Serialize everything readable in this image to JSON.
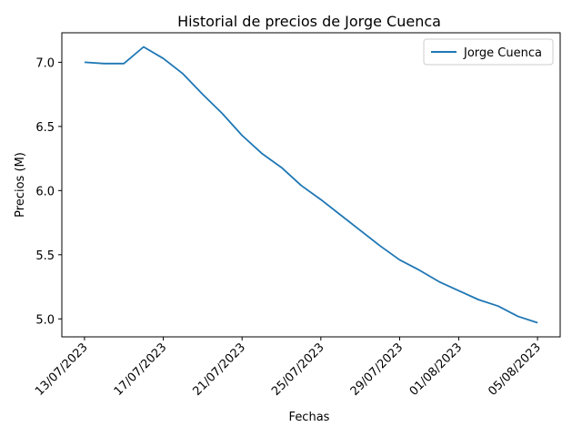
{
  "chart_data": {
    "type": "line",
    "title": "Historial de precios de Jorge Cuenca",
    "xlabel": "Fechas",
    "ylabel": "Precios (M)",
    "x": [
      "13/07/2023",
      "15/07/2023",
      "15/07/2023",
      "16/07/2023",
      "17/07/2023",
      "18/07/2023",
      "19/07/2023",
      "20/07/2023",
      "21/07/2023",
      "22/07/2023",
      "23/07/2023",
      "24/07/2023",
      "25/07/2023",
      "26/07/2023",
      "27/07/2023",
      "28/07/2023",
      "29/07/2023",
      "30/07/2023",
      "31/07/2023",
      "01/08/2023",
      "02/08/2023",
      "03/08/2023",
      "04/08/2023",
      "05/08/2023"
    ],
    "series": [
      {
        "name": "Jorge Cuenca",
        "color": "#1f77b4",
        "values": [
          7.0,
          6.99,
          6.99,
          7.12,
          7.03,
          6.91,
          6.75,
          6.6,
          6.43,
          6.29,
          6.18,
          6.04,
          5.93,
          5.81,
          5.69,
          5.57,
          5.46,
          5.38,
          5.29,
          5.22,
          5.15,
          5.1,
          5.02,
          4.97
        ]
      }
    ],
    "x_positions_days": [
      0,
      1,
      2,
      3,
      4,
      5,
      6,
      7,
      8,
      9,
      10,
      11,
      12,
      13,
      14,
      15,
      16,
      17,
      18,
      19,
      20,
      21,
      22,
      23
    ],
    "xticks": [
      "13/07/2023",
      "17/07/2023",
      "21/07/2023",
      "25/07/2023",
      "29/07/2023",
      "01/08/2023",
      "05/08/2023"
    ],
    "xtick_days": [
      0,
      4,
      8,
      12,
      16,
      19,
      23
    ],
    "yticks": [
      "5.0",
      "5.5",
      "6.0",
      "6.5",
      "7.0"
    ],
    "ytick_values": [
      5.0,
      5.5,
      6.0,
      6.5,
      7.0
    ],
    "ylim": [
      4.86,
      7.23
    ],
    "xlim_days": [
      -1.15,
      24.15
    ],
    "grid": false,
    "legend_position": "top-right"
  }
}
